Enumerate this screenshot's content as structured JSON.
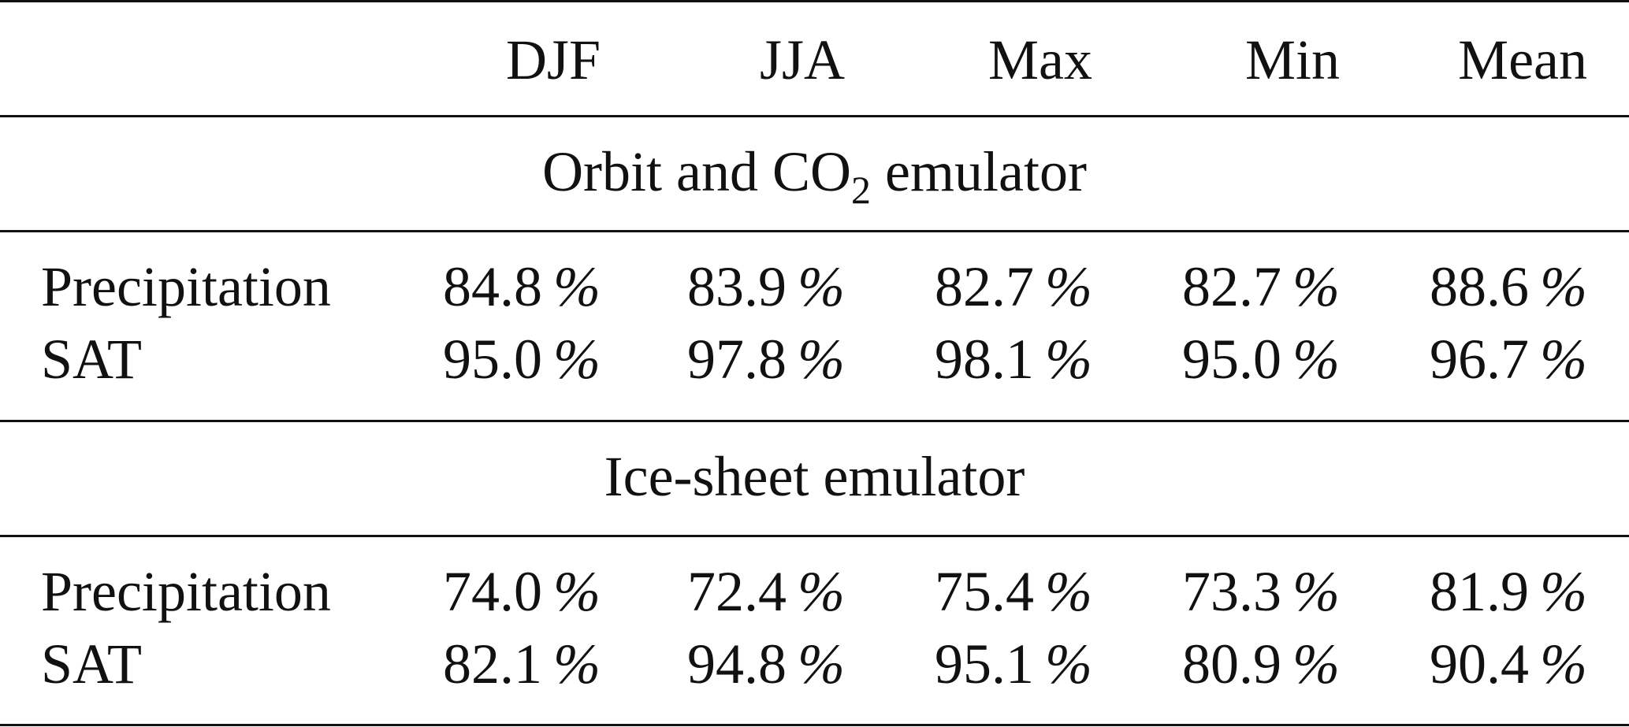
{
  "table": {
    "columns": [
      "DJF",
      "JJA",
      "Max",
      "Min",
      "Mean"
    ],
    "sections": [
      {
        "title_main": "Orbit and CO",
        "title_sub": "2",
        "title_tail": " emulator",
        "rows": [
          {
            "label": "Precipitation",
            "values": [
              "84.8",
              "83.9",
              "82.7",
              "82.7",
              "88.6"
            ]
          },
          {
            "label": "SAT",
            "values": [
              "95.0",
              "97.8",
              "98.1",
              "95.0",
              "96.7"
            ]
          }
        ]
      },
      {
        "title_main": "Ice-sheet emulator",
        "title_sub": "",
        "title_tail": "",
        "rows": [
          {
            "label": "Precipitation",
            "values": [
              "74.0",
              "72.4",
              "75.4",
              "73.3",
              "81.9"
            ]
          },
          {
            "label": "SAT",
            "values": [
              "82.1",
              "94.8",
              "95.1",
              "80.9",
              "90.4"
            ]
          }
        ]
      }
    ],
    "unit": "%"
  }
}
